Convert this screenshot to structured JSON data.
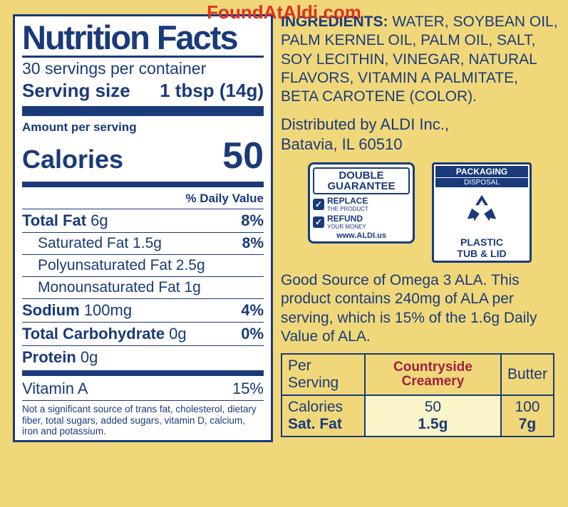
{
  "watermark": "FoundAtAldi.com",
  "nf": {
    "title": "Nutrition Facts",
    "servings": "30 servings per container",
    "serving_size_label": "Serving size",
    "serving_size_value": "1 tbsp (14g)",
    "amount_label": "Amount per serving",
    "calories_label": "Calories",
    "calories_value": "50",
    "dv_header": "% Daily Value",
    "rows": [
      {
        "name_bold": "Total Fat",
        "name_rest": " 6g",
        "pct": "8%",
        "indent": false,
        "bar": true
      },
      {
        "name_bold": "",
        "name_rest": "Saturated Fat 1.5g",
        "pct": "8%",
        "indent": true,
        "bar": true
      },
      {
        "name_bold": "",
        "name_rest": "Polyunsaturated Fat 2.5g",
        "pct": "",
        "indent": true,
        "bar": true
      },
      {
        "name_bold": "",
        "name_rest": "Monounsaturated Fat 1g",
        "pct": "",
        "indent": true,
        "bar": true
      },
      {
        "name_bold": "Sodium",
        "name_rest": " 100mg",
        "pct": "4%",
        "indent": false,
        "bar": true
      },
      {
        "name_bold": "Total Carbohydrate",
        "name_rest": " 0g",
        "pct": "0%",
        "indent": false,
        "bar": true
      },
      {
        "name_bold": "Protein",
        "name_rest": " 0g",
        "pct": "",
        "indent": false,
        "bar": false
      }
    ],
    "vitamin_row": {
      "name": "Vitamin A",
      "pct": "15%"
    },
    "footnote": "Not a significant source of trans fat, cholesterol, dietary fiber, total sugars, added sugars, vitamin D, calcium, iron and potassium."
  },
  "ingredients": {
    "label": "INGREDIENTS:",
    "text": " WATER, SOYBEAN OIL, PALM KERNEL OIL, PALM OIL, SALT, SOY LECITHIN, VINEGAR, NATURAL FLAVORS, VITAMIN A PALMITATE, BETA CAROTENE (COLOR)."
  },
  "dist": {
    "l1": "Distributed by ALDI Inc.,",
    "l2": "Batavia, IL 60510"
  },
  "guarantee": {
    "title1": "DOUBLE",
    "title2": "GUARANTEE",
    "r1a": "REPLACE",
    "r1b": "THE PRODUCT",
    "r2a": "REFUND",
    "r2b": "YOUR MONEY",
    "url": "www.ALDI.us"
  },
  "packaging": {
    "head": "PACKAGING",
    "sub": "DISPOSAL",
    "foot1": "PLASTIC",
    "foot2": "TUB & LID"
  },
  "omega": "Good Source of Omega 3 ALA. This product contains 240mg of ALA per serving, which is 15% of the 1.6g Daily Value of ALA.",
  "comp": {
    "h1": "Per Serving",
    "h2": "Countryside Creamery",
    "h3": "Butter",
    "r1": {
      "label": "Calories",
      "a": "50",
      "b": "100"
    },
    "r2": {
      "label": "Sat. Fat",
      "a": "1.5g",
      "b": "7g"
    }
  },
  "colors": {
    "bg": "#f0d87a",
    "navy": "#1a3a7a",
    "red": "#e03020",
    "brand": "#a02040"
  }
}
